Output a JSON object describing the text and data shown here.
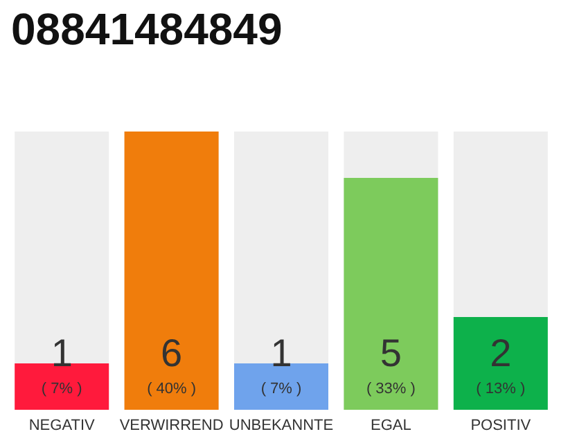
{
  "chart_data": {
    "type": "bar",
    "title": "08841484849",
    "categories": [
      "NEGATIV",
      "VERWIRREND",
      "UNBEKANNTE",
      "EGAL",
      "POSITIV"
    ],
    "values": [
      1,
      6,
      1,
      5,
      2
    ],
    "colors": [
      "#ff1a3c",
      "#f07d0c",
      "#6fa3ec",
      "#7dcb5c",
      "#0db14b"
    ],
    "data_labels": true,
    "annotations": [
      "( 7% )",
      "( 40% )",
      "( 7% )",
      "( 33% )",
      "( 13% )"
    ]
  }
}
